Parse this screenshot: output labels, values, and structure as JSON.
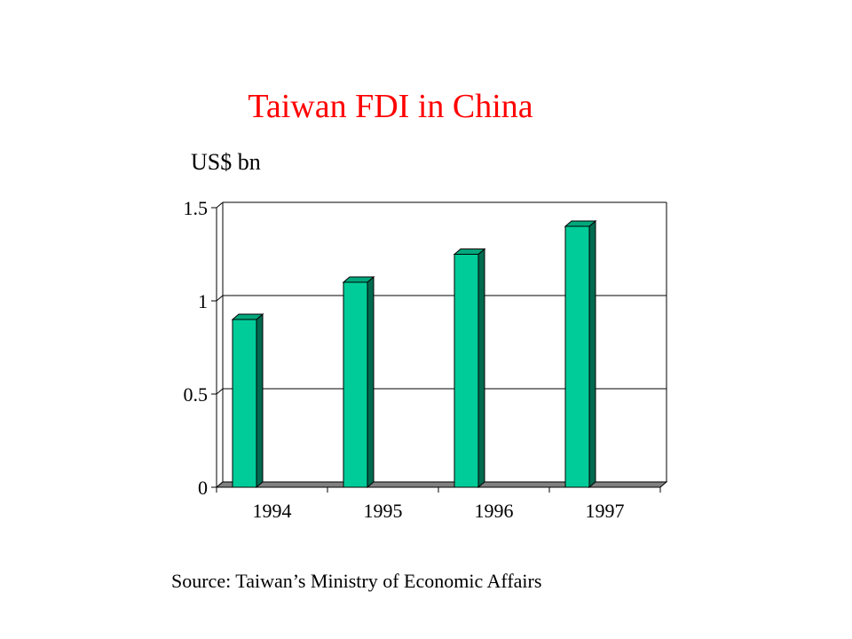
{
  "chart_data": {
    "type": "bar",
    "title": "Taiwan FDI in China",
    "ylabel": "US$ bn",
    "xlabel": "",
    "categories": [
      "1994",
      "1995",
      "1996",
      "1997"
    ],
    "values": [
      0.9,
      1.1,
      1.25,
      1.4
    ],
    "ylim": [
      0,
      1.5
    ],
    "yticks": [
      0,
      0.5,
      1,
      1.5
    ],
    "ytick_labels": [
      "0",
      "0.5",
      "1",
      "1.5"
    ],
    "grid": true,
    "three_d": true,
    "colors": {
      "bar_front": "#00cc99",
      "bar_top": "#00a77c",
      "bar_side": "#006a4f",
      "floor": "#808080",
      "title": "#ff0000"
    }
  },
  "footer": {
    "source": "Source: Taiwan’s Ministry of Economic Affairs"
  }
}
